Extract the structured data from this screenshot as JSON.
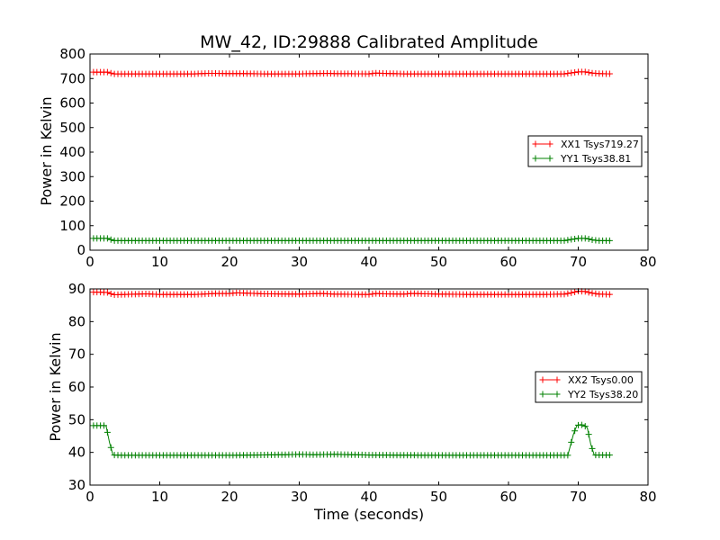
{
  "figure": {
    "title": "MW_42, ID:29888 Calibrated Amplitude",
    "xlabel": "Time (seconds)"
  },
  "colors": {
    "xx": "#ff0000",
    "yy": "#008000",
    "frame": "#000000"
  },
  "chart_data": [
    {
      "type": "line",
      "title": "MW_42, ID:29888 Calibrated Amplitude",
      "xlabel": "",
      "ylabel": "Power in Kelvin",
      "xlim": [
        0,
        80
      ],
      "ylim": [
        0,
        800
      ],
      "xticks": [
        0,
        10,
        20,
        30,
        40,
        50,
        60,
        70,
        80
      ],
      "yticks": [
        0,
        100,
        200,
        300,
        400,
        500,
        600,
        700,
        800
      ],
      "grid": false,
      "legend_location": "center-right",
      "series": [
        {
          "name": "XX1 Tsys719.27",
          "color": "#ff0000",
          "marker": "+",
          "x": [
            0.5,
            1.5,
            2.5,
            3.0,
            3.5,
            5,
            10,
            15,
            17,
            18,
            20,
            22,
            25,
            30,
            34,
            35,
            40,
            41,
            42,
            45,
            50,
            55,
            60,
            65,
            68,
            69,
            70,
            71,
            71.5,
            72,
            73,
            74.7
          ],
          "y": [
            726,
            726,
            726,
            722,
            719,
            719,
            719,
            719,
            721,
            721,
            720,
            720,
            719,
            719,
            721,
            720,
            719,
            722,
            721,
            719,
            719,
            719,
            719,
            719,
            719,
            723,
            727,
            727,
            725,
            722,
            720,
            719
          ]
        },
        {
          "name": "YY1 Tsys38.81",
          "color": "#008000",
          "marker": "+",
          "x": [
            0.5,
            1.5,
            2.5,
            3.0,
            3.5,
            5,
            10,
            20,
            30,
            40,
            50,
            60,
            68,
            69,
            70,
            71,
            71.5,
            72,
            73,
            74.7
          ],
          "y": [
            48,
            48,
            48,
            43,
            39,
            39,
            39,
            39,
            39,
            39,
            39,
            39,
            39,
            44,
            48,
            48,
            46,
            42,
            39,
            39
          ]
        }
      ]
    },
    {
      "type": "line",
      "title": "",
      "xlabel": "Time (seconds)",
      "ylabel": "Power in Kelvin",
      "xlim": [
        0,
        80
      ],
      "ylim": [
        30,
        90
      ],
      "xticks": [
        0,
        10,
        20,
        30,
        40,
        50,
        60,
        70,
        80
      ],
      "yticks": [
        30,
        40,
        50,
        60,
        70,
        80,
        90
      ],
      "grid": false,
      "legend_location": "center-right",
      "series": [
        {
          "name": "XX2 Tsys0.00",
          "color": "#ff0000",
          "marker": "+",
          "x": [
            0.5,
            1.5,
            2.5,
            3.0,
            3.5,
            5,
            8,
            10,
            15,
            17,
            18,
            20,
            21,
            25,
            30,
            33,
            35,
            40,
            41,
            42,
            45,
            46,
            50,
            55,
            60,
            65,
            68,
            69,
            70,
            71,
            72,
            73,
            74.7
          ],
          "y": [
            89.0,
            89.0,
            88.9,
            88.5,
            88.2,
            88.3,
            88.5,
            88.3,
            88.3,
            88.5,
            88.6,
            88.6,
            88.8,
            88.5,
            88.4,
            88.6,
            88.4,
            88.3,
            88.6,
            88.5,
            88.4,
            88.6,
            88.4,
            88.3,
            88.3,
            88.3,
            88.4,
            88.8,
            89.3,
            89.2,
            88.7,
            88.4,
            88.3
          ]
        },
        {
          "name": "YY2 Tsys38.20",
          "color": "#008000",
          "marker": "+",
          "x": [
            0.5,
            1.5,
            2.3,
            2.8,
            3.3,
            5,
            10,
            20,
            28,
            30,
            32,
            35,
            40,
            50,
            60,
            68.5,
            69.3,
            69.8,
            70.3,
            70.8,
            71.3,
            71.8,
            72.3,
            74.7
          ],
          "y": [
            48.2,
            48.2,
            48.2,
            43.0,
            39.2,
            39.1,
            39.1,
            39.1,
            39.3,
            39.4,
            39.3,
            39.4,
            39.2,
            39.1,
            39.1,
            39.1,
            45.5,
            48.2,
            48.5,
            48.3,
            47.5,
            42.5,
            39.2,
            39.2
          ]
        }
      ]
    }
  ]
}
